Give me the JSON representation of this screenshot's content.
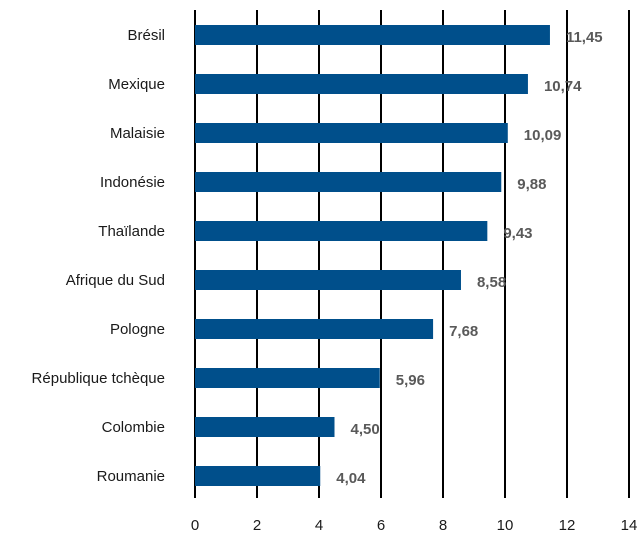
{
  "chart_data": {
    "type": "bar",
    "orientation": "horizontal",
    "title": "",
    "xlabel": "",
    "ylabel": "",
    "categories": [
      "Brésil",
      "Mexique",
      "Malaisie",
      "Indonésie",
      "Thaïlande",
      "Afrique du Sud",
      "Pologne",
      "République tchèque",
      "Colombie",
      "Roumanie"
    ],
    "values": [
      11.45,
      10.74,
      10.09,
      9.88,
      9.43,
      8.58,
      7.68,
      5.96,
      4.5,
      4.04
    ],
    "value_labels": [
      "11,45",
      "10,74",
      "10,09",
      "9,88",
      "9,43",
      "8,58",
      "7,68",
      "5,96",
      "4,50",
      "4,04"
    ],
    "xlim": [
      0,
      14
    ],
    "xticks": [
      0,
      2,
      4,
      6,
      8,
      10,
      12,
      14
    ],
    "xtick_labels": [
      "0",
      "2",
      "4",
      "6",
      "8",
      "10",
      "12",
      "14"
    ],
    "grid": "vertical",
    "legend": "none",
    "bar_color": "#004f8b",
    "grid_color": "#000000",
    "label_color": "#595959"
  }
}
